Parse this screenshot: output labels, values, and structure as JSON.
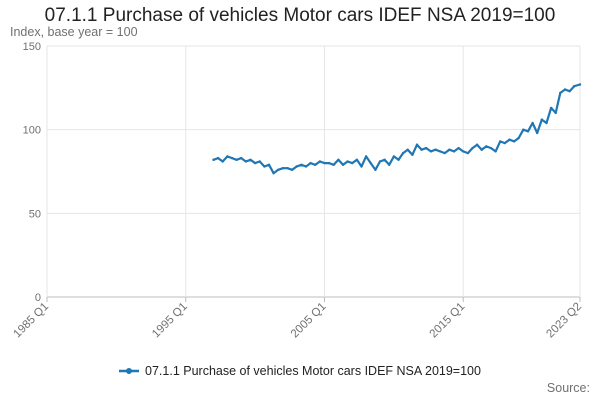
{
  "chart_data": {
    "type": "line",
    "title": "07.1.1 Purchase of vehicles Motor cars IDEF NSA 2019=100",
    "ylabel": "Index, base year = 100",
    "xlabel": "",
    "x_ticks": [
      "1985 Q1",
      "1995 Q1",
      "2005 Q1",
      "2015 Q1",
      "2023 Q2"
    ],
    "y_ticks": [
      0,
      50,
      100,
      150
    ],
    "ylim": [
      0,
      150
    ],
    "xlim": [
      "1985-01",
      "2023-06"
    ],
    "grid": true,
    "legend_position": "bottom",
    "source_label": "Source:",
    "color": "#1f77b4",
    "series": [
      {
        "name": "07.1.1 Purchase of vehicles Motor cars IDEF NSA 2019=100",
        "x": [
          "1997-01",
          "1997-05",
          "1997-09",
          "1998-01",
          "1998-05",
          "1998-09",
          "1999-01",
          "1999-05",
          "1999-09",
          "2000-01",
          "2000-05",
          "2000-09",
          "2001-01",
          "2001-05",
          "2001-09",
          "2002-01",
          "2002-05",
          "2002-09",
          "2003-01",
          "2003-05",
          "2003-09",
          "2004-01",
          "2004-05",
          "2004-09",
          "2005-01",
          "2005-05",
          "2005-09",
          "2006-01",
          "2006-05",
          "2006-09",
          "2007-01",
          "2007-05",
          "2007-09",
          "2008-01",
          "2008-05",
          "2008-09",
          "2009-01",
          "2009-05",
          "2009-09",
          "2010-01",
          "2010-05",
          "2010-09",
          "2011-01",
          "2011-05",
          "2011-09",
          "2012-01",
          "2012-05",
          "2012-09",
          "2013-01",
          "2013-05",
          "2013-09",
          "2014-01",
          "2014-05",
          "2014-09",
          "2015-01",
          "2015-05",
          "2015-09",
          "2016-01",
          "2016-05",
          "2016-09",
          "2017-01",
          "2017-05",
          "2017-09",
          "2018-01",
          "2018-05",
          "2018-09",
          "2019-01",
          "2019-05",
          "2019-09",
          "2020-01",
          "2020-05",
          "2020-09",
          "2021-01",
          "2021-05",
          "2021-09",
          "2022-01",
          "2022-05",
          "2022-09",
          "2023-01",
          "2023-06"
        ],
        "values": [
          82,
          83,
          81,
          84,
          83,
          82,
          83,
          81,
          82,
          80,
          81,
          78,
          79,
          74,
          76,
          77,
          77,
          76,
          78,
          79,
          78,
          80,
          79,
          81,
          80,
          80,
          79,
          82,
          79,
          81,
          80,
          82,
          78,
          84,
          80,
          76,
          81,
          82,
          79,
          84,
          82,
          86,
          88,
          85,
          91,
          88,
          89,
          87,
          88,
          87,
          86,
          88,
          87,
          89,
          87,
          86,
          89,
          91,
          88,
          90,
          89,
          87,
          93,
          92,
          94,
          93,
          95,
          100,
          99,
          104,
          98,
          106,
          104,
          113,
          110,
          122,
          124,
          123,
          126,
          127
        ]
      }
    ]
  }
}
